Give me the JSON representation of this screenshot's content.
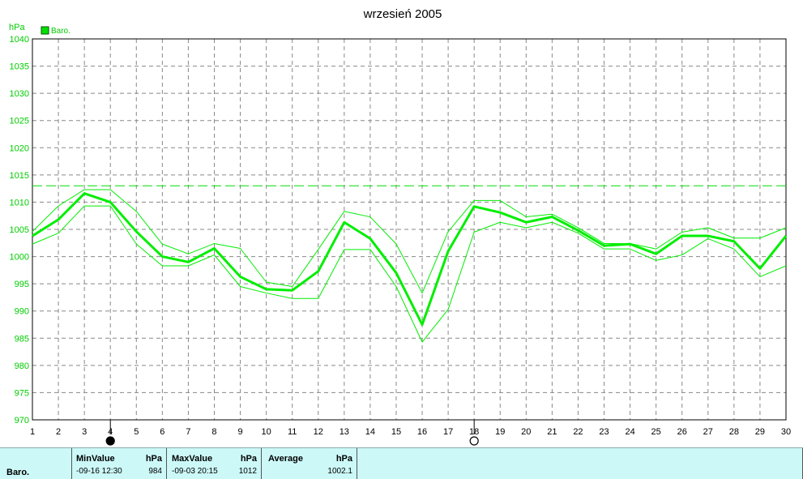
{
  "chart_data": {
    "type": "line",
    "title": "wrzesień 2005",
    "ylabel": "hPa",
    "legend": "Baro.",
    "legend_color": "#00e000",
    "ylim": [
      970,
      1040
    ],
    "yticks": [
      970,
      975,
      980,
      985,
      990,
      995,
      1000,
      1005,
      1010,
      1015,
      1020,
      1025,
      1030,
      1035,
      1040
    ],
    "x": [
      1,
      2,
      3,
      4,
      5,
      6,
      7,
      8,
      9,
      10,
      11,
      12,
      13,
      14,
      15,
      16,
      17,
      18,
      19,
      20,
      21,
      22,
      23,
      24,
      25,
      26,
      27,
      28,
      29,
      30
    ],
    "grid": true,
    "reference_line": 1013,
    "series": [
      {
        "values": [
          1003.8,
          1006.8,
          1011.6,
          1010.0,
          1004.6,
          1000.0,
          999.0,
          1001.5,
          996.3,
          994.0,
          993.8,
          997.3,
          1006.3,
          1003.3,
          997.0,
          987.5,
          1001.0,
          1009.2,
          1008.1,
          1006.3,
          1007.3,
          1004.8,
          1002.0,
          1002.3,
          1000.5,
          1003.8,
          1003.8,
          1002.8,
          997.8,
          1003.8
        ]
      },
      {
        "values": [
          1004.6,
          1009.3,
          1012.3,
          1012.3,
          1008.3,
          1002.3,
          1000.5,
          1002.4,
          1001.5,
          995.3,
          994.5,
          1001.3,
          1008.3,
          1007.3,
          1002.3,
          993.3,
          1004.6,
          1010.3,
          1010.3,
          1007.3,
          1007.8,
          1005.3,
          1002.4,
          1002.4,
          1001.4,
          1004.5,
          1005.3,
          1003.4,
          1003.4,
          1005.3
        ]
      },
      {
        "values": [
          1002.3,
          1004.3,
          1009.3,
          1009.3,
          1002.3,
          998.3,
          998.3,
          1000.3,
          994.5,
          993.3,
          992.3,
          992.3,
          1001.3,
          1001.3,
          994.5,
          984.3,
          990.3,
          1004.5,
          1006.3,
          1005.3,
          1006.3,
          1004.3,
          1001.4,
          1001.4,
          999.3,
          1000.3,
          1003.3,
          1001.4,
          996.3,
          998.3
        ]
      }
    ],
    "markers": [
      {
        "x": 4,
        "symbol": "full-moon-icon"
      },
      {
        "x": 18,
        "symbol": "new-moon-icon"
      }
    ]
  },
  "summary": {
    "series_label": "Baro.",
    "min_header": "MinValue",
    "min_unit": "hPa",
    "min_time": "-09-16  12:30",
    "min_value": "984",
    "max_header": "MaxValue",
    "max_unit": "hPa",
    "max_time": "-09-03  20:15",
    "max_value": "1012",
    "avg_header": "Average",
    "avg_unit": "hPa",
    "avg_value": "1002.1"
  }
}
